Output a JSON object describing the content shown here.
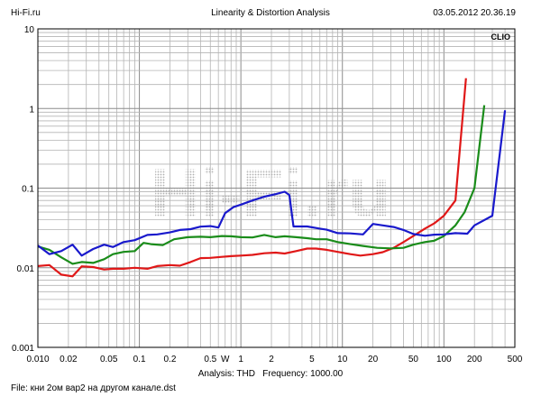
{
  "header": {
    "site": "Hi-Fi.ru",
    "title": "Linearity & Distortion Analysis",
    "timestamp": "03.05.2012 20.36.19"
  },
  "brand": "CLIO",
  "watermark": "Hi-Fi.ru",
  "footer": {
    "analysis_prefix": "Analysis:",
    "analysis_value": "THD",
    "frequency_prefix": "Frequency:",
    "frequency_value": "1000.00",
    "file": "File: кни 2ом вар2 на другом канале.dst"
  },
  "chart_data": {
    "type": "line",
    "x_scale": "log",
    "y_scale": "log",
    "xlim": [
      0.01,
      500
    ],
    "ylim": [
      0.001,
      10
    ],
    "grid": true,
    "x_tick_labels": [
      {
        "v": 0.01,
        "t": "0.010"
      },
      {
        "v": 0.02,
        "t": "0.02"
      },
      {
        "v": 0.05,
        "t": "0.05"
      },
      {
        "v": 0.1,
        "t": "0.1"
      },
      {
        "v": 0.2,
        "t": "0.2"
      },
      {
        "v": 0.5,
        "t": "0.5"
      },
      {
        "v": 0.7,
        "t": "W"
      },
      {
        "v": 1,
        "t": "1"
      },
      {
        "v": 2,
        "t": "2"
      },
      {
        "v": 5,
        "t": "5"
      },
      {
        "v": 10,
        "t": "10"
      },
      {
        "v": 20,
        "t": "20"
      },
      {
        "v": 50,
        "t": "50"
      },
      {
        "v": 100,
        "t": "100"
      },
      {
        "v": 200,
        "t": "200"
      },
      {
        "v": 500,
        "t": "500"
      }
    ],
    "y_tick_labels": [
      {
        "v": 10,
        "t": "10"
      },
      {
        "v": 1,
        "t": "1"
      },
      {
        "v": 0.1,
        "t": "0.1"
      },
      {
        "v": 0.01,
        "t": "0.01"
      },
      {
        "v": 0.001,
        "t": "0.001"
      }
    ],
    "series": [
      {
        "color": "#e01818",
        "x": [
          0.01,
          0.013,
          0.017,
          0.022,
          0.027,
          0.035,
          0.045,
          0.055,
          0.07,
          0.09,
          0.12,
          0.15,
          0.2,
          0.25,
          0.32,
          0.4,
          0.5,
          0.65,
          0.8,
          1.0,
          1.3,
          1.7,
          2.2,
          2.7,
          3.5,
          4.5,
          5.5,
          7,
          9,
          12,
          15,
          20,
          25,
          32,
          40,
          50,
          65,
          80,
          100,
          130,
          165
        ],
        "y": [
          0.0105,
          0.0108,
          0.0082,
          0.0078,
          0.0104,
          0.0102,
          0.0095,
          0.0097,
          0.0097,
          0.01,
          0.0097,
          0.0105,
          0.0108,
          0.0106,
          0.0118,
          0.0132,
          0.0133,
          0.0137,
          0.014,
          0.0142,
          0.0145,
          0.0152,
          0.0155,
          0.0151,
          0.0162,
          0.0174,
          0.0174,
          0.0168,
          0.0158,
          0.0148,
          0.0142,
          0.0148,
          0.0157,
          0.0178,
          0.021,
          0.025,
          0.031,
          0.036,
          0.045,
          0.07,
          2.4
        ]
      },
      {
        "color": "#1a8c1a",
        "x": [
          0.01,
          0.013,
          0.017,
          0.022,
          0.027,
          0.035,
          0.045,
          0.055,
          0.07,
          0.09,
          0.11,
          0.13,
          0.17,
          0.22,
          0.3,
          0.4,
          0.5,
          0.65,
          0.8,
          1.0,
          1.3,
          1.7,
          2.2,
          2.7,
          3.5,
          4.5,
          5.5,
          7,
          9,
          12,
          16,
          22,
          30,
          40,
          50,
          65,
          80,
          100,
          130,
          160,
          200,
          250
        ],
        "y": [
          0.0185,
          0.0168,
          0.0135,
          0.0112,
          0.0118,
          0.0115,
          0.0128,
          0.0148,
          0.0158,
          0.0162,
          0.0205,
          0.0198,
          0.0192,
          0.0228,
          0.0242,
          0.0245,
          0.0242,
          0.025,
          0.0248,
          0.0242,
          0.024,
          0.0258,
          0.0242,
          0.0248,
          0.0242,
          0.0235,
          0.0228,
          0.0228,
          0.021,
          0.0198,
          0.0188,
          0.0178,
          0.0175,
          0.0178,
          0.0195,
          0.021,
          0.0218,
          0.025,
          0.034,
          0.05,
          0.1,
          1.1
        ]
      },
      {
        "color": "#1919cc",
        "x": [
          0.01,
          0.013,
          0.017,
          0.022,
          0.027,
          0.035,
          0.045,
          0.055,
          0.07,
          0.09,
          0.12,
          0.15,
          0.2,
          0.25,
          0.32,
          0.4,
          0.5,
          0.6,
          0.7,
          0.85,
          1.0,
          1.3,
          1.7,
          2.2,
          2.7,
          3.0,
          3.3,
          4.5,
          6,
          7,
          9,
          12,
          16,
          20,
          25,
          32,
          40,
          50,
          65,
          80,
          100,
          130,
          170,
          200,
          300,
          400
        ],
        "y": [
          0.019,
          0.0148,
          0.0162,
          0.0195,
          0.0142,
          0.0172,
          0.0195,
          0.0182,
          0.021,
          0.0222,
          0.0258,
          0.0262,
          0.0278,
          0.0298,
          0.0305,
          0.0328,
          0.0333,
          0.032,
          0.0485,
          0.058,
          0.062,
          0.07,
          0.078,
          0.084,
          0.09,
          0.082,
          0.033,
          0.033,
          0.031,
          0.03,
          0.0272,
          0.027,
          0.0262,
          0.0355,
          0.034,
          0.0325,
          0.0298,
          0.0265,
          0.0252,
          0.026,
          0.0262,
          0.0272,
          0.0268,
          0.034,
          0.045,
          0.95
        ]
      }
    ]
  }
}
